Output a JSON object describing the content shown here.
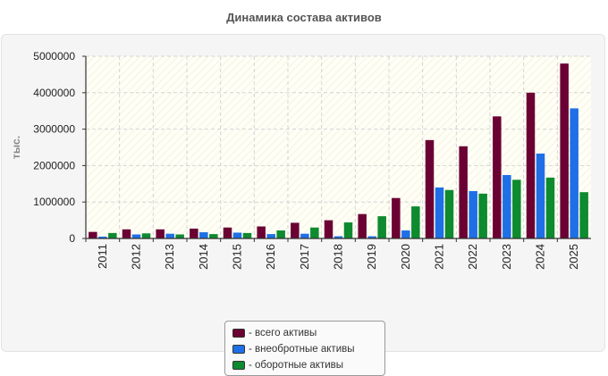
{
  "chart_data": {
    "type": "bar",
    "title": "Динамика состава активов",
    "ylabel": "тыс.",
    "xlabel": "",
    "ylim": [
      0,
      5000000
    ],
    "yticks": [
      "0",
      "1000000",
      "2000000",
      "3000000",
      "4000000",
      "5000000"
    ],
    "yticks_values": [
      0,
      1000000,
      2000000,
      3000000,
      4000000,
      5000000
    ],
    "grid": true,
    "legend_position": "bottom",
    "categories": [
      "2011",
      "2012",
      "2013",
      "2014",
      "2015",
      "2016",
      "2017",
      "2018",
      "2019",
      "2020",
      "2021",
      "2022",
      "2023",
      "2024",
      "2025"
    ],
    "series": [
      {
        "name": "- всего активы",
        "color": "#6b0033",
        "values": [
          180000,
          250000,
          250000,
          270000,
          300000,
          330000,
          430000,
          500000,
          670000,
          1110000,
          2700000,
          2530000,
          3350000,
          4000000,
          4800000
        ]
      },
      {
        "name": "- внеобротные активы",
        "color": "#1f6fe6",
        "values": [
          50000,
          110000,
          130000,
          170000,
          160000,
          120000,
          130000,
          60000,
          60000,
          220000,
          1400000,
          1300000,
          1740000,
          2330000,
          3570000
        ]
      },
      {
        "name": "- оборотные активы",
        "color": "#0e8a2f",
        "values": [
          150000,
          140000,
          110000,
          120000,
          150000,
          220000,
          300000,
          440000,
          610000,
          880000,
          1330000,
          1230000,
          1610000,
          1670000,
          1270000
        ]
      }
    ]
  }
}
